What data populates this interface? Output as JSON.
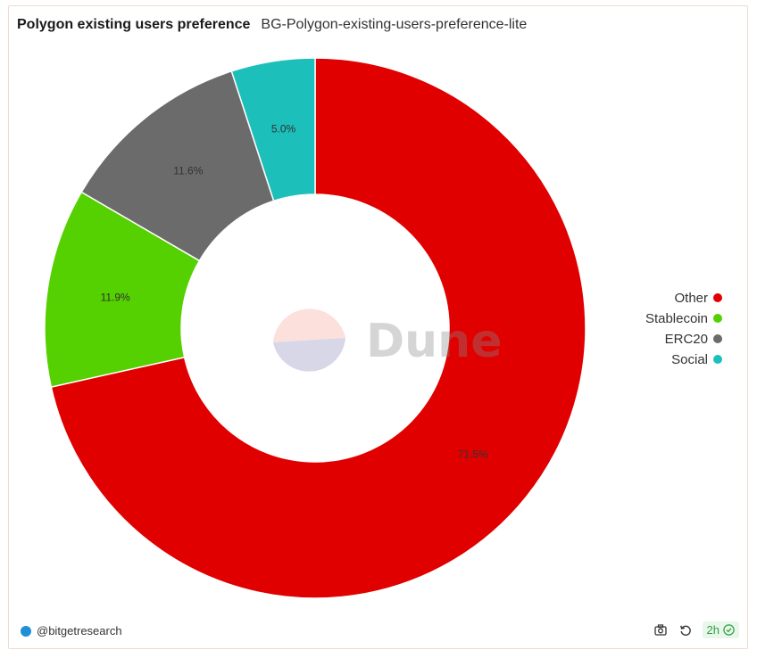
{
  "header": {
    "title": "Polygon existing users preference",
    "subtitle": "BG-Polygon-existing-users-preference-lite"
  },
  "chart_data": {
    "type": "pie",
    "donut": true,
    "slices": [
      {
        "name": "Other",
        "value": 71.5,
        "label": "71.5%",
        "color": "#e00000"
      },
      {
        "name": "Stablecoin",
        "value": 11.9,
        "label": "11.9%",
        "color": "#55d000"
      },
      {
        "name": "ERC20",
        "value": 11.6,
        "label": "11.6%",
        "color": "#6b6b6b"
      },
      {
        "name": "Social",
        "value": 5.0,
        "label": "5.0%",
        "color": "#1cbfba"
      }
    ],
    "legend_position": "right",
    "watermark": "Dune"
  },
  "footer": {
    "author": "@bitgetresearch",
    "refresh_label": "2h"
  },
  "icons": {
    "camera": "camera-icon",
    "refresh": "refresh-icon",
    "check": "check-circle-icon"
  }
}
